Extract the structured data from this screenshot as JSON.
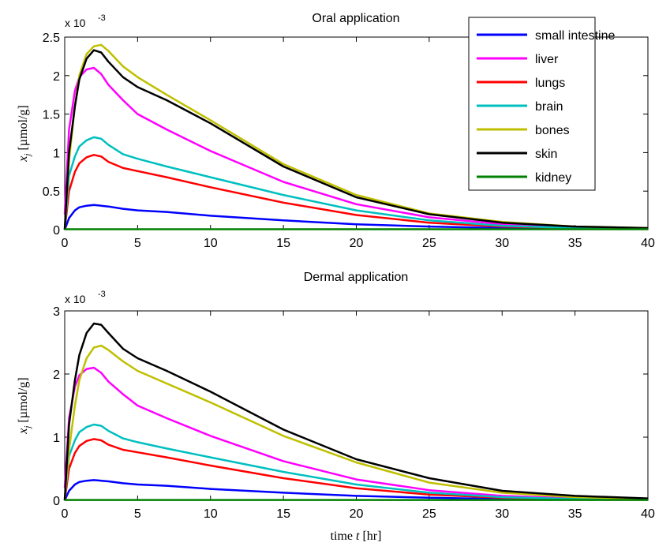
{
  "figure": {
    "xlabel_prefix": "time ",
    "xlabel_var": "t",
    "xlabel_unit": " [hr]",
    "ylabel_var": "x",
    "ylabel_sub": "j",
    "ylabel_unit": " [µmol/g]",
    "exponent_base": "x 10",
    "exponent_power": "-3"
  },
  "chart_data": [
    {
      "type": "line",
      "title": "Oral application",
      "xlim": [
        0,
        40
      ],
      "ylim": [
        0,
        2.5
      ],
      "xticks": [
        "0",
        "5",
        "10",
        "15",
        "20",
        "25",
        "30",
        "35",
        "40"
      ],
      "yticks": [
        "0",
        "0.5",
        "1",
        "1.5",
        "2",
        "2.5"
      ],
      "y_scale_label": "x 10^-3",
      "grid": false,
      "legend": "top-right",
      "series": [
        {
          "name": "small intestine",
          "color": "#0000ff",
          "x": [
            0,
            0.3,
            0.7,
            1,
            1.5,
            2,
            2.5,
            3,
            4,
            5,
            7,
            10,
            15,
            20,
            25,
            30,
            35,
            40
          ],
          "y": [
            0,
            0.15,
            0.25,
            0.29,
            0.31,
            0.32,
            0.31,
            0.3,
            0.27,
            0.25,
            0.23,
            0.18,
            0.12,
            0.07,
            0.04,
            0.02,
            0.01,
            0.01
          ]
        },
        {
          "name": "liver",
          "color": "#ff00ff",
          "x": [
            0,
            0.3,
            0.7,
            1,
            1.5,
            2,
            2.5,
            3,
            4,
            5,
            7,
            10,
            15,
            20,
            25,
            30,
            35,
            40
          ],
          "y": [
            0.2,
            1.3,
            1.8,
            1.98,
            2.08,
            2.1,
            2.02,
            1.88,
            1.68,
            1.5,
            1.3,
            1.02,
            0.62,
            0.33,
            0.16,
            0.07,
            0.03,
            0.01
          ]
        },
        {
          "name": "lungs",
          "color": "#ff0000",
          "x": [
            0,
            0.3,
            0.7,
            1,
            1.5,
            2,
            2.5,
            3,
            4,
            5,
            7,
            10,
            15,
            20,
            25,
            30,
            35,
            40
          ],
          "y": [
            0,
            0.5,
            0.75,
            0.86,
            0.94,
            0.97,
            0.95,
            0.88,
            0.8,
            0.76,
            0.68,
            0.55,
            0.35,
            0.19,
            0.09,
            0.04,
            0.02,
            0.01
          ]
        },
        {
          "name": "brain",
          "color": "#00bfbf",
          "x": [
            0,
            0.3,
            0.7,
            1,
            1.5,
            2,
            2.5,
            3,
            4,
            5,
            7,
            10,
            15,
            20,
            25,
            30,
            35,
            40
          ],
          "y": [
            0,
            0.7,
            0.95,
            1.08,
            1.16,
            1.2,
            1.18,
            1.1,
            0.98,
            0.92,
            0.82,
            0.68,
            0.45,
            0.25,
            0.12,
            0.05,
            0.02,
            0.01
          ]
        },
        {
          "name": "bones",
          "color": "#bfbf00",
          "x": [
            0,
            0.3,
            0.7,
            1,
            1.5,
            2,
            2.5,
            3,
            4,
            5,
            7,
            10,
            15,
            20,
            25,
            30,
            35,
            40
          ],
          "y": [
            0,
            0.9,
            1.6,
            2.0,
            2.28,
            2.38,
            2.4,
            2.32,
            2.12,
            1.98,
            1.75,
            1.42,
            0.85,
            0.45,
            0.21,
            0.1,
            0.04,
            0.02
          ]
        },
        {
          "name": "skin",
          "color": "#000000",
          "x": [
            0,
            0.3,
            0.7,
            1,
            1.5,
            2,
            2.5,
            3,
            4,
            5,
            7,
            10,
            15,
            20,
            25,
            30,
            35,
            40
          ],
          "y": [
            0,
            1.0,
            1.6,
            1.95,
            2.22,
            2.33,
            2.3,
            2.18,
            1.98,
            1.85,
            1.68,
            1.38,
            0.82,
            0.42,
            0.2,
            0.09,
            0.04,
            0.02
          ]
        },
        {
          "name": "kidney",
          "color": "#008000",
          "x": [
            0,
            5,
            10,
            15,
            20,
            25,
            30,
            35,
            40
          ],
          "y": [
            0.005,
            0.005,
            0.005,
            0.005,
            0.005,
            0.005,
            0.005,
            0.005,
            0.005
          ]
        }
      ]
    },
    {
      "type": "line",
      "title": "Dermal application",
      "xlim": [
        0,
        40
      ],
      "ylim": [
        0,
        3
      ],
      "xticks": [
        "0",
        "5",
        "10",
        "15",
        "20",
        "25",
        "30",
        "35",
        "40"
      ],
      "yticks": [
        "0",
        "1",
        "2",
        "3"
      ],
      "y_scale_label": "x 10^-3",
      "grid": false,
      "series": [
        {
          "name": "small intestine",
          "color": "#0000ff",
          "x": [
            0,
            0.3,
            0.7,
            1,
            1.5,
            2,
            2.5,
            3,
            4,
            5,
            7,
            10,
            15,
            20,
            25,
            30,
            35,
            40
          ],
          "y": [
            0,
            0.15,
            0.25,
            0.29,
            0.31,
            0.32,
            0.31,
            0.3,
            0.27,
            0.25,
            0.23,
            0.18,
            0.12,
            0.07,
            0.04,
            0.02,
            0.01,
            0.01
          ]
        },
        {
          "name": "liver",
          "color": "#ff00ff",
          "x": [
            0,
            0.3,
            0.7,
            1,
            1.5,
            2,
            2.5,
            3,
            4,
            5,
            7,
            10,
            15,
            20,
            25,
            30,
            35,
            40
          ],
          "y": [
            0.2,
            1.3,
            1.8,
            1.98,
            2.08,
            2.1,
            2.02,
            1.88,
            1.68,
            1.5,
            1.3,
            1.02,
            0.62,
            0.33,
            0.16,
            0.07,
            0.03,
            0.01
          ]
        },
        {
          "name": "lungs",
          "color": "#ff0000",
          "x": [
            0,
            0.3,
            0.7,
            1,
            1.5,
            2,
            2.5,
            3,
            4,
            5,
            7,
            10,
            15,
            20,
            25,
            30,
            35,
            40
          ],
          "y": [
            0,
            0.5,
            0.75,
            0.86,
            0.94,
            0.97,
            0.95,
            0.88,
            0.8,
            0.76,
            0.68,
            0.55,
            0.35,
            0.19,
            0.09,
            0.04,
            0.02,
            0.01
          ]
        },
        {
          "name": "brain",
          "color": "#00bfbf",
          "x": [
            0,
            0.3,
            0.7,
            1,
            1.5,
            2,
            2.5,
            3,
            4,
            5,
            7,
            10,
            15,
            20,
            25,
            30,
            35,
            40
          ],
          "y": [
            0,
            0.7,
            0.95,
            1.08,
            1.16,
            1.2,
            1.18,
            1.1,
            0.98,
            0.92,
            0.82,
            0.68,
            0.45,
            0.25,
            0.12,
            0.05,
            0.02,
            0.01
          ]
        },
        {
          "name": "bones",
          "color": "#bfbf00",
          "x": [
            0,
            0.3,
            0.7,
            1,
            1.5,
            2,
            2.5,
            3,
            4,
            5,
            7,
            10,
            15,
            20,
            25,
            30,
            35,
            40
          ],
          "y": [
            0,
            0.8,
            1.5,
            1.9,
            2.25,
            2.42,
            2.45,
            2.38,
            2.2,
            2.05,
            1.85,
            1.55,
            1.02,
            0.6,
            0.28,
            0.12,
            0.05,
            0.02
          ]
        },
        {
          "name": "skin",
          "color": "#000000",
          "x": [
            0,
            0.3,
            0.7,
            1,
            1.5,
            2,
            2.5,
            3,
            4,
            5,
            7,
            10,
            15,
            20,
            25,
            30,
            35,
            40
          ],
          "y": [
            0,
            1.2,
            1.9,
            2.3,
            2.65,
            2.8,
            2.78,
            2.65,
            2.4,
            2.25,
            2.05,
            1.72,
            1.12,
            0.65,
            0.35,
            0.15,
            0.07,
            0.03
          ]
        },
        {
          "name": "kidney",
          "color": "#008000",
          "x": [
            0,
            5,
            10,
            15,
            20,
            25,
            30,
            35,
            40
          ],
          "y": [
            0.005,
            0.005,
            0.005,
            0.005,
            0.005,
            0.005,
            0.005,
            0.005,
            0.005
          ]
        }
      ]
    }
  ]
}
